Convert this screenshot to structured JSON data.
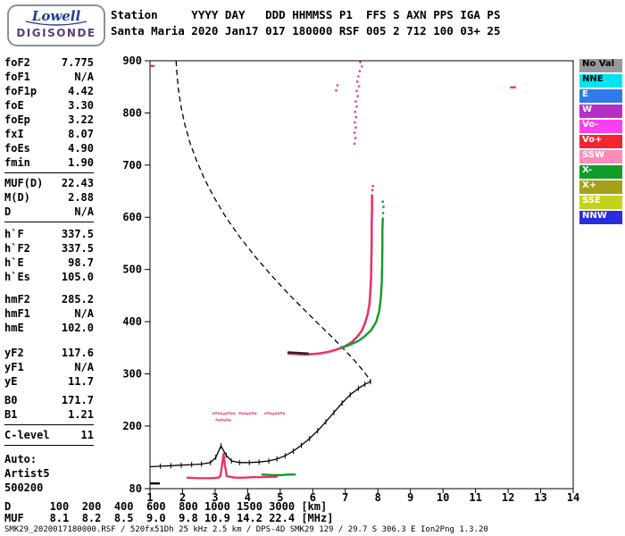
{
  "logo": {
    "line1": "Lowell",
    "line2": "DIGISONDE"
  },
  "header": {
    "line1": "Station     YYYY DAY   DDD HHMMSS P1  FFS S AXN PPS IGA PS",
    "line2": "Santa Maria 2020 Jan17 017 180000 RSF 005 2 712 100 03+ 25"
  },
  "params": {
    "groups": [
      {
        "gap_above": 0,
        "sep_after": true,
        "rows": [
          {
            "label": "foF2",
            "value": "7.775"
          },
          {
            "label": "foF1",
            "value": "N/A"
          },
          {
            "label": "foF1p",
            "value": "4.42"
          },
          {
            "label": "foE",
            "value": "3.30"
          },
          {
            "label": "foEp",
            "value": "3.22"
          },
          {
            "label": "fxI",
            "value": "8.07"
          },
          {
            "label": "foEs",
            "value": "4.90"
          },
          {
            "label": "fmin",
            "value": "1.90"
          }
        ]
      },
      {
        "gap_above": 0,
        "sep_after": true,
        "rows": [
          {
            "label": "MUF(D)",
            "value": "22.43"
          },
          {
            "label": "M(D)",
            "value": "2.88"
          },
          {
            "label": "D",
            "value": "N/A"
          }
        ]
      },
      {
        "gap_above": 5,
        "sep_after": false,
        "rows": [
          {
            "label": "h`F",
            "value": "337.5"
          },
          {
            "label": "h`F2",
            "value": "337.5"
          },
          {
            "label": "h`E",
            "value": "98.7"
          },
          {
            "label": "h`Es",
            "value": "105.0"
          }
        ]
      },
      {
        "gap_above": 9,
        "sep_after": false,
        "rows": [
          {
            "label": "hmF2",
            "value": "285.2"
          },
          {
            "label": "hmF1",
            "value": "N/A"
          },
          {
            "label": "hmE",
            "value": "102.0"
          }
        ]
      },
      {
        "gap_above": 12,
        "sep_after": false,
        "rows": [
          {
            "label": "yF2",
            "value": "117.6"
          },
          {
            "label": "yF1",
            "value": "N/A"
          },
          {
            "label": "yE",
            "value": "11.7"
          }
        ]
      },
      {
        "gap_above": 5,
        "sep_after": true,
        "rows": [
          {
            "label": "B0",
            "value": "171.7"
          },
          {
            "label": "B1",
            "value": "1.21"
          }
        ]
      },
      {
        "gap_above": 0,
        "sep_after": true,
        "rows": [
          {
            "label": "C-level",
            "value": "11"
          }
        ]
      },
      {
        "gap_above": 7,
        "sep_after": false,
        "rows": [
          {
            "label": "Auto:",
            "value": ""
          },
          {
            "label": "Artist5",
            "value": ""
          },
          {
            "label": "500200",
            "value": ""
          }
        ]
      }
    ]
  },
  "legend": {
    "items": [
      {
        "label": "No Val",
        "bg": "#98989e",
        "fg": "#000000"
      },
      {
        "label": "NNE",
        "bg": "#00e4f0",
        "fg": "#000000"
      },
      {
        "label": "E",
        "bg": "#2d7ce8",
        "fg": "#ffffff"
      },
      {
        "label": "W",
        "bg": "#b62fc4",
        "fg": "#ffffff"
      },
      {
        "label": "Vo-",
        "bg": "#f93ff0",
        "fg": "#ffffff"
      },
      {
        "label": "Vo+",
        "bg": "#f42430",
        "fg": "#ffffff"
      },
      {
        "label": "SSW",
        "bg": "#fb8cb8",
        "fg": "#ffffff"
      },
      {
        "label": "X-",
        "bg": "#0f9c28",
        "fg": "#ffffff"
      },
      {
        "label": "X+",
        "bg": "#a4a018",
        "fg": "#ffffff"
      },
      {
        "label": "SSE",
        "bg": "#c5d21c",
        "fg": "#ffffff"
      },
      {
        "label": "NNW",
        "bg": "#2b2be0",
        "fg": "#ffffff"
      }
    ]
  },
  "bottom": {
    "d_line": "D      100  200  400  600  800 1000 1500 3000 [km]",
    "muf_line": "MUF    8.1  8.2  8.5  9.0  9.8 10.9 14.2 22.4 [MHz]",
    "status": "SMK29_2020017180000.RSF / 520fx51Dh 25 kHz 2.5 km / DPS-4D SMK29 129 / 29.7 S 306.3 E Ion2Png 1.3.20"
  },
  "chart_data": {
    "type": "scatter",
    "title": "",
    "xlabel": "[MHz]",
    "ylabel": "[km]",
    "xlim": [
      1,
      14
    ],
    "ylim": [
      80,
      900
    ],
    "x_ticks": [
      1,
      2,
      3,
      4,
      5,
      6,
      7,
      8,
      9,
      10,
      11,
      12,
      13,
      14
    ],
    "y_ticks": [
      80,
      200,
      300,
      400,
      500,
      600,
      700,
      800,
      900
    ],
    "grid": false,
    "legend_position": "right",
    "series": [
      {
        "name": "topside-profile-dashed",
        "style": "dashed",
        "color": "#000000",
        "points": [
          [
            1.8,
            900
          ],
          [
            1.83,
            872
          ],
          [
            1.88,
            842
          ],
          [
            1.96,
            810
          ],
          [
            2.07,
            778
          ],
          [
            2.22,
            744
          ],
          [
            2.42,
            710
          ],
          [
            2.67,
            674
          ],
          [
            2.97,
            638
          ],
          [
            3.33,
            600
          ],
          [
            3.76,
            562
          ],
          [
            4.24,
            524
          ],
          [
            4.74,
            488
          ],
          [
            5.24,
            454
          ],
          [
            5.72,
            424
          ],
          [
            6.17,
            396
          ],
          [
            6.58,
            371
          ],
          [
            6.93,
            349
          ],
          [
            7.23,
            329
          ],
          [
            7.48,
            311
          ],
          [
            7.66,
            297
          ],
          [
            7.775,
            285
          ]
        ]
      },
      {
        "name": "bottomside-profile-ticked",
        "style": "ticked",
        "color": "#000000",
        "points": [
          [
            1.0,
            122
          ],
          [
            1.32,
            123
          ],
          [
            1.64,
            124
          ],
          [
            1.96,
            125
          ],
          [
            2.28,
            126
          ],
          [
            2.58,
            127
          ],
          [
            2.86,
            130
          ],
          [
            3.02,
            140
          ],
          [
            3.18,
            162
          ],
          [
            3.34,
            144
          ],
          [
            3.5,
            133
          ],
          [
            3.75,
            130
          ],
          [
            4.05,
            130
          ],
          [
            4.35,
            131
          ],
          [
            4.65,
            133
          ],
          [
            4.9,
            137
          ],
          [
            5.15,
            143
          ],
          [
            5.4,
            152
          ],
          [
            5.65,
            163
          ],
          [
            5.9,
            176
          ],
          [
            6.15,
            191
          ],
          [
            6.4,
            208
          ],
          [
            6.65,
            226
          ],
          [
            6.9,
            244
          ],
          [
            7.15,
            260
          ],
          [
            7.4,
            272
          ],
          [
            7.6,
            280
          ],
          [
            7.775,
            285
          ]
        ]
      },
      {
        "name": "f-trace-o-mode",
        "style": "line",
        "color": "#e8356b",
        "width": 2.6,
        "points": [
          [
            5.25,
            339
          ],
          [
            5.5,
            338
          ],
          [
            5.75,
            337
          ],
          [
            6.0,
            338
          ],
          [
            6.2,
            339
          ],
          [
            6.4,
            341
          ],
          [
            6.6,
            344
          ],
          [
            6.8,
            348
          ],
          [
            7.0,
            353
          ],
          [
            7.2,
            361
          ],
          [
            7.35,
            370
          ],
          [
            7.5,
            382
          ],
          [
            7.6,
            396
          ],
          [
            7.68,
            413
          ],
          [
            7.74,
            433
          ],
          [
            7.77,
            457
          ],
          [
            7.79,
            485
          ],
          [
            7.8,
            517
          ],
          [
            7.81,
            551
          ],
          [
            7.81,
            585
          ],
          [
            7.82,
            618
          ],
          [
            7.82,
            642
          ]
        ]
      },
      {
        "name": "f-trace-x-mode",
        "style": "line",
        "color": "#0f9c28",
        "width": 2.4,
        "points": [
          [
            6.9,
            350
          ],
          [
            7.15,
            356
          ],
          [
            7.4,
            363
          ],
          [
            7.6,
            372
          ],
          [
            7.8,
            384
          ],
          [
            7.95,
            400
          ],
          [
            8.04,
            420
          ],
          [
            8.09,
            445
          ],
          [
            8.12,
            475
          ],
          [
            8.13,
            508
          ],
          [
            8.14,
            543
          ],
          [
            8.14,
            576
          ],
          [
            8.15,
            598
          ]
        ]
      },
      {
        "name": "f-trace-start-dark",
        "style": "line",
        "color": "#222222",
        "width": 2.4,
        "points": [
          [
            5.25,
            341
          ],
          [
            5.55,
            340
          ],
          [
            5.85,
            339
          ]
        ]
      },
      {
        "name": "es-trace-o-mode",
        "style": "line",
        "color": "#e8356b",
        "width": 2.4,
        "points": [
          [
            2.15,
            101
          ],
          [
            2.5,
            100
          ],
          [
            2.9,
            100
          ],
          [
            3.1,
            101
          ],
          [
            3.16,
            104
          ],
          [
            3.22,
            128
          ],
          [
            3.26,
            147
          ],
          [
            3.3,
            125
          ],
          [
            3.36,
            104
          ],
          [
            3.6,
            101
          ],
          [
            3.9,
            101
          ],
          [
            4.2,
            102
          ],
          [
            4.5,
            102
          ],
          [
            4.9,
            103
          ]
        ]
      },
      {
        "name": "es-trace-x-mode",
        "style": "line",
        "color": "#0f9c28",
        "width": 2.4,
        "points": [
          [
            4.45,
            107
          ],
          [
            4.75,
            106
          ],
          [
            5.05,
            106
          ],
          [
            5.25,
            107
          ],
          [
            5.45,
            107
          ]
        ]
      },
      {
        "name": "mid-scatter-upper",
        "style": "dots",
        "color": "#f06a9a",
        "points": [
          [
            2.95,
            224
          ],
          [
            3.03,
            225
          ],
          [
            3.11,
            224
          ],
          [
            3.19,
            224
          ],
          [
            3.27,
            223
          ],
          [
            3.35,
            224
          ],
          [
            3.43,
            225
          ],
          [
            3.51,
            224
          ],
          [
            3.59,
            224
          ],
          [
            3.76,
            225
          ],
          [
            3.84,
            224
          ],
          [
            3.92,
            224
          ],
          [
            4.0,
            223
          ],
          [
            4.08,
            224
          ],
          [
            4.16,
            225
          ],
          [
            4.24,
            224
          ],
          [
            4.55,
            224
          ],
          [
            4.63,
            225
          ],
          [
            4.71,
            224
          ],
          [
            4.79,
            223
          ],
          [
            4.87,
            224
          ],
          [
            4.95,
            224
          ],
          [
            5.03,
            225
          ],
          [
            5.11,
            224
          ]
        ]
      },
      {
        "name": "mid-scatter-lower",
        "style": "dots",
        "color": "#f06a9a",
        "points": [
          [
            3.05,
            212
          ],
          [
            3.13,
            211
          ],
          [
            3.21,
            212
          ],
          [
            3.29,
            211
          ],
          [
            3.37,
            212
          ],
          [
            3.45,
            211
          ]
        ]
      },
      {
        "name": "spread-f-column",
        "style": "dots",
        "color": "#e2429e",
        "points": [
          [
            7.46,
            897
          ],
          [
            7.51,
            889
          ],
          [
            7.44,
            880
          ],
          [
            7.4,
            870
          ],
          [
            7.37,
            860
          ],
          [
            7.42,
            851
          ],
          [
            7.35,
            842
          ],
          [
            7.38,
            832
          ],
          [
            7.32,
            822
          ],
          [
            7.35,
            812
          ],
          [
            7.3,
            802
          ],
          [
            7.33,
            792
          ],
          [
            7.29,
            782
          ],
          [
            7.32,
            772
          ],
          [
            7.28,
            762
          ],
          [
            7.31,
            752
          ],
          [
            7.28,
            741
          ],
          [
            6.76,
            853
          ],
          [
            6.72,
            843
          ]
        ]
      },
      {
        "name": "riser-top-dots-red",
        "style": "dots",
        "color": "#e8356b",
        "points": [
          [
            7.83,
            652
          ],
          [
            7.85,
            660
          ]
        ]
      },
      {
        "name": "riser-top-dots-green",
        "style": "dots",
        "color": "#0f9c28",
        "points": [
          [
            8.16,
            608
          ],
          [
            8.17,
            620
          ],
          [
            8.15,
            630
          ]
        ]
      },
      {
        "name": "stray-marks-red",
        "style": "dash",
        "color": "#e8356b",
        "width": 2.4,
        "points": [
          [
            1.02,
            890
          ],
          [
            1.14,
            890
          ],
          [
            12.06,
            849
          ],
          [
            12.24,
            849
          ]
        ]
      },
      {
        "name": "baseline-mark-black",
        "style": "dash",
        "color": "#000000",
        "width": 2.4,
        "points": [
          [
            1.0,
            90
          ],
          [
            1.3,
            90
          ]
        ]
      }
    ]
  }
}
